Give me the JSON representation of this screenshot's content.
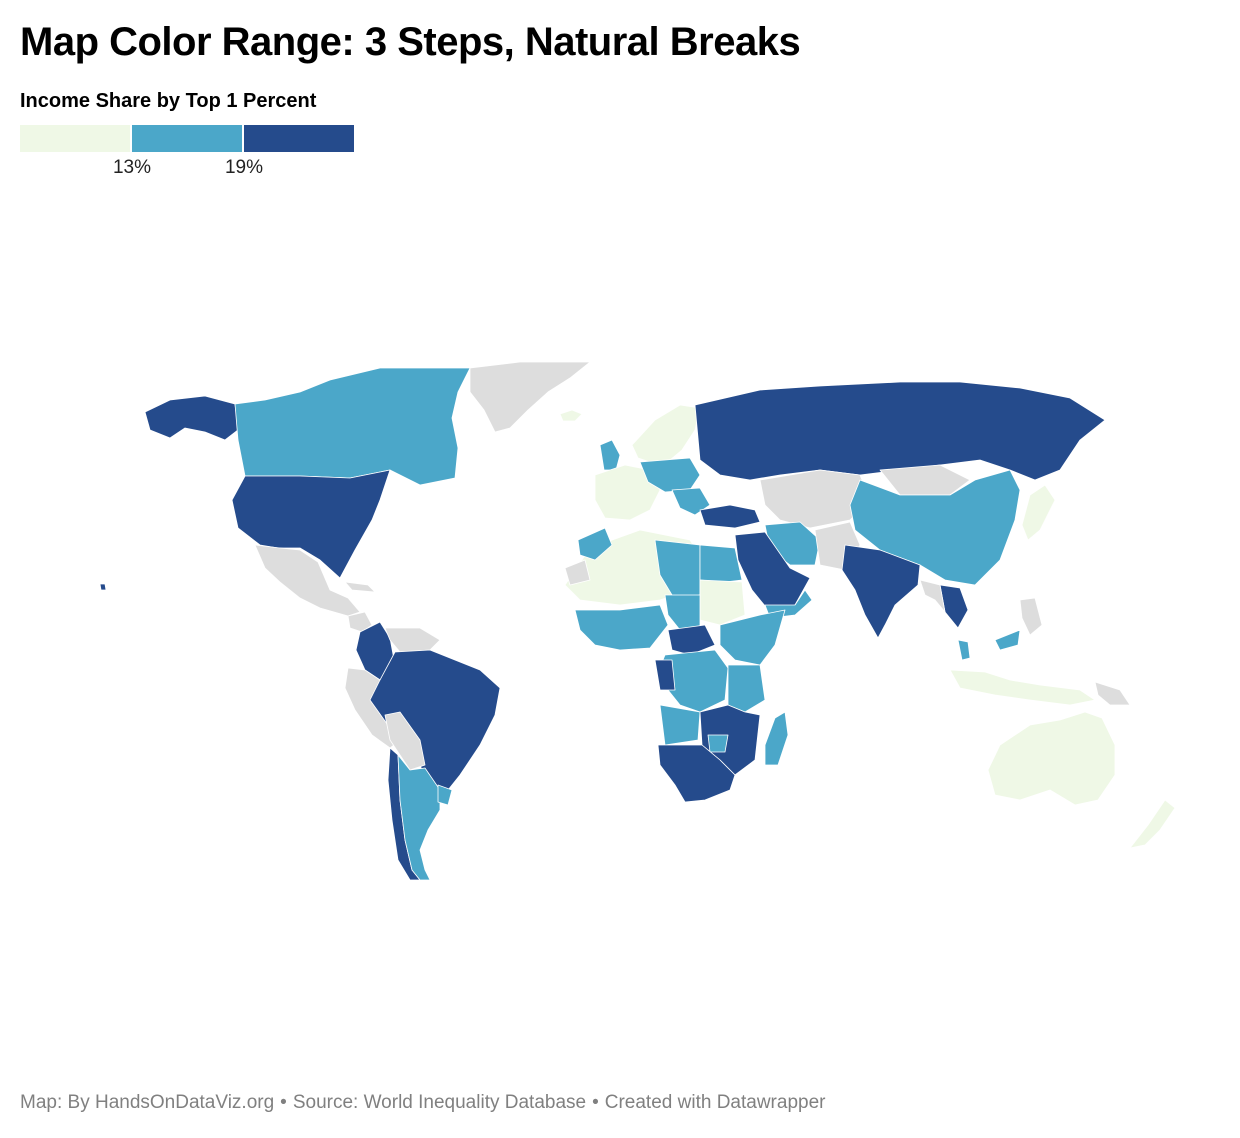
{
  "title": "Map Color Range: 3 Steps, Natural Breaks",
  "legend": {
    "title": "Income Share by Top 1 Percent",
    "steps": [
      {
        "color": "#eff8e6"
      },
      {
        "color": "#4ba7c9"
      },
      {
        "color": "#254b8c"
      }
    ],
    "ticks": [
      {
        "label": "13%",
        "value": 13
      },
      {
        "label": "19%",
        "value": 19
      }
    ]
  },
  "colors": {
    "low": "#eff8e6",
    "mid": "#4ba7c9",
    "high": "#254b8c",
    "no_data": "#dddddd"
  },
  "footer": {
    "map_credit": "Map: By HandsOnDataViz.org",
    "source": "Source: World Inequality Database",
    "created_with": "Created with Datawrapper",
    "separator": "•"
  }
}
